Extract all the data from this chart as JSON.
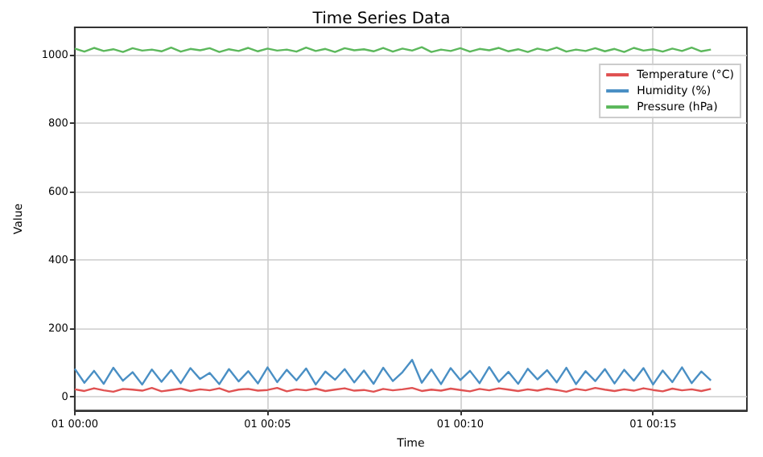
{
  "chart_data": {
    "type": "line",
    "title": "Time Series Data",
    "xlabel": "Time",
    "ylabel": "Value",
    "x": [
      "--01-01T00:00:00",
      "--01-01T00:00:15",
      "--01-01T00:00:30",
      "--01-01T00:00:45",
      "--01-01T00:01:00",
      "--01-01T00:01:15",
      "--01-01T00:01:30",
      "--01-01T00:01:45",
      "--01-01T00:02:00",
      "--01-01T00:02:15",
      "--01-01T00:02:30",
      "--01-01T00:02:45",
      "--01-01T00:03:00",
      "--01-01T00:03:15",
      "--01-01T00:03:30",
      "--01-01T00:03:45",
      "--01-01T00:04:00",
      "--01-01T00:04:15",
      "--01-01T00:04:30",
      "--01-01T00:04:45",
      "--01-01T00:05:00",
      "--01-01T00:05:15",
      "--01-01T00:05:30",
      "--01-01T00:05:45",
      "--01-01T00:06:00",
      "--01-01T00:06:15",
      "--01-01T00:06:30",
      "--01-01T00:06:45",
      "--01-01T00:07:00",
      "--01-01T00:07:15",
      "--01-01T00:07:30",
      "--01-01T00:07:45",
      "--01-01T00:08:00",
      "--01-01T00:08:15",
      "--01-01T00:08:30",
      "--01-01T00:08:45",
      "--01-01T00:09:00",
      "--01-01T00:09:15",
      "--01-01T00:09:30",
      "--01-01T00:09:45",
      "--01-01T00:10:00",
      "--01-01T00:10:15",
      "--01-01T00:10:30",
      "--01-01T00:10:45",
      "--01-01T00:11:00",
      "--01-01T00:11:15",
      "--01-01T00:11:30",
      "--01-01T00:11:45",
      "--01-01T00:12:00",
      "--01-01T00:12:15",
      "--01-01T00:12:30",
      "--01-01T00:12:45",
      "--01-01T00:13:00",
      "--01-01T00:13:15",
      "--01-01T00:13:30",
      "--01-01T00:13:45",
      "--01-01T00:14:00",
      "--01-01T00:14:15",
      "--01-01T00:14:30",
      "--01-01T00:14:45",
      "--01-01T00:15:00",
      "--01-01T00:15:15",
      "--01-01T00:15:30",
      "--01-01T00:15:45",
      "--01-01T00:16:00",
      "--01-01T00:16:15",
      "--01-01T00:16:30"
    ],
    "series": [
      {
        "name": "Temperature (°C)",
        "color": "#e05252",
        "values": [
          22,
          17,
          25,
          19,
          15,
          23,
          21,
          18,
          26,
          16,
          20,
          24,
          17,
          22,
          19,
          25,
          15,
          21,
          23,
          18,
          20,
          26,
          16,
          22,
          19,
          24,
          17,
          21,
          25,
          18,
          20,
          15,
          23,
          19,
          22,
          26,
          17,
          21,
          18,
          24,
          20,
          16,
          23,
          19,
          25,
          21,
          17,
          22,
          18,
          24,
          20,
          15,
          23,
          19,
          26,
          21,
          17,
          22,
          18,
          25,
          20,
          16,
          24,
          19,
          22,
          17,
          23
        ]
      },
      {
        "name": "Humidity (%)",
        "color": "#4a8fc4",
        "values": [
          82,
          41,
          76,
          38,
          85,
          47,
          72,
          36,
          80,
          44,
          78,
          40,
          84,
          52,
          70,
          37,
          81,
          45,
          75,
          39,
          86,
          43,
          79,
          48,
          83,
          36,
          74,
          50,
          81,
          42,
          77,
          38,
          85,
          46,
          72,
          108,
          41,
          80,
          37,
          84,
          49,
          76,
          40,
          87,
          44,
          73,
          38,
          82,
          51,
          78,
          42,
          85,
          37,
          75,
          46,
          81,
          39,
          79,
          47,
          84,
          36,
          77,
          43,
          86,
          40,
          74,
          48
        ]
      },
      {
        "name": "Pressure (hPa)",
        "color": "#5cb85c",
        "values": [
          1018,
          1009,
          1020,
          1011,
          1016,
          1008,
          1019,
          1012,
          1015,
          1010,
          1021,
          1009,
          1017,
          1013,
          1019,
          1008,
          1016,
          1011,
          1020,
          1010,
          1018,
          1012,
          1015,
          1009,
          1021,
          1011,
          1017,
          1008,
          1019,
          1013,
          1016,
          1010,
          1020,
          1009,
          1018,
          1012,
          1022,
          1008,
          1015,
          1011,
          1019,
          1009,
          1017,
          1013,
          1020,
          1010,
          1016,
          1008,
          1018,
          1012,
          1021,
          1009,
          1015,
          1011,
          1019,
          1010,
          1017,
          1008,
          1020,
          1012,
          1016,
          1009,
          1018,
          1011,
          1021,
          1010,
          1015
        ]
      }
    ],
    "xlim": [
      "--01-01T00:00:00",
      "--01-01T00:17:26"
    ],
    "xticks": [
      {
        "value": "--01-01T00:00",
        "label": "01 00:00"
      },
      {
        "value": "--01-01T00:05",
        "label": "01 00:05"
      },
      {
        "value": "--01-01T00:10",
        "label": "01 00:10"
      },
      {
        "value": "--01-01T00:15",
        "label": "01 00:15"
      }
    ],
    "ylim": [
      -40,
      1080
    ],
    "yticks": [
      0,
      200,
      400,
      600,
      800,
      1000
    ],
    "grid": true,
    "legend": "top right",
    "line_style": "solid"
  }
}
